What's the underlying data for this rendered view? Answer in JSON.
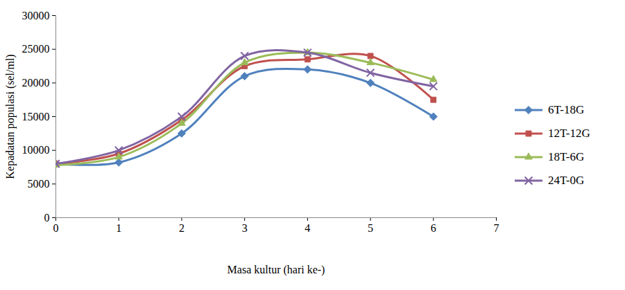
{
  "chart_data": {
    "type": "line",
    "x_label": "Masa kultur (hari ke-)",
    "y_label": "Kepadatan populasi (sel/ml)",
    "x": [
      0,
      1,
      2,
      3,
      4,
      5,
      6
    ],
    "series": [
      {
        "name": "6T-18G",
        "color": "#4F81BD",
        "marker": "diamond",
        "values": [
          8000,
          8200,
          12500,
          21000,
          22000,
          20000,
          15000
        ]
      },
      {
        "name": "12T-12G",
        "color": "#C0504D",
        "marker": "square",
        "values": [
          8000,
          9500,
          14500,
          22500,
          23500,
          24000,
          17500
        ]
      },
      {
        "name": "18T-6G",
        "color": "#9BBB59",
        "marker": "triangle",
        "values": [
          7800,
          9000,
          14000,
          23000,
          24500,
          23000,
          20500
        ]
      },
      {
        "name": "24T-0G",
        "color": "#8064A2",
        "marker": "x",
        "values": [
          8000,
          10000,
          15000,
          24000,
          24500,
          21500,
          19500
        ]
      }
    ],
    "xlim": [
      0,
      7
    ],
    "xticks": [
      0,
      1,
      2,
      3,
      4,
      5,
      6,
      7
    ],
    "ylim": [
      0,
      30000
    ],
    "yticks": [
      0,
      5000,
      10000,
      15000,
      20000,
      25000,
      30000
    ],
    "grid": false,
    "legend": "right",
    "line_style": "smooth"
  }
}
